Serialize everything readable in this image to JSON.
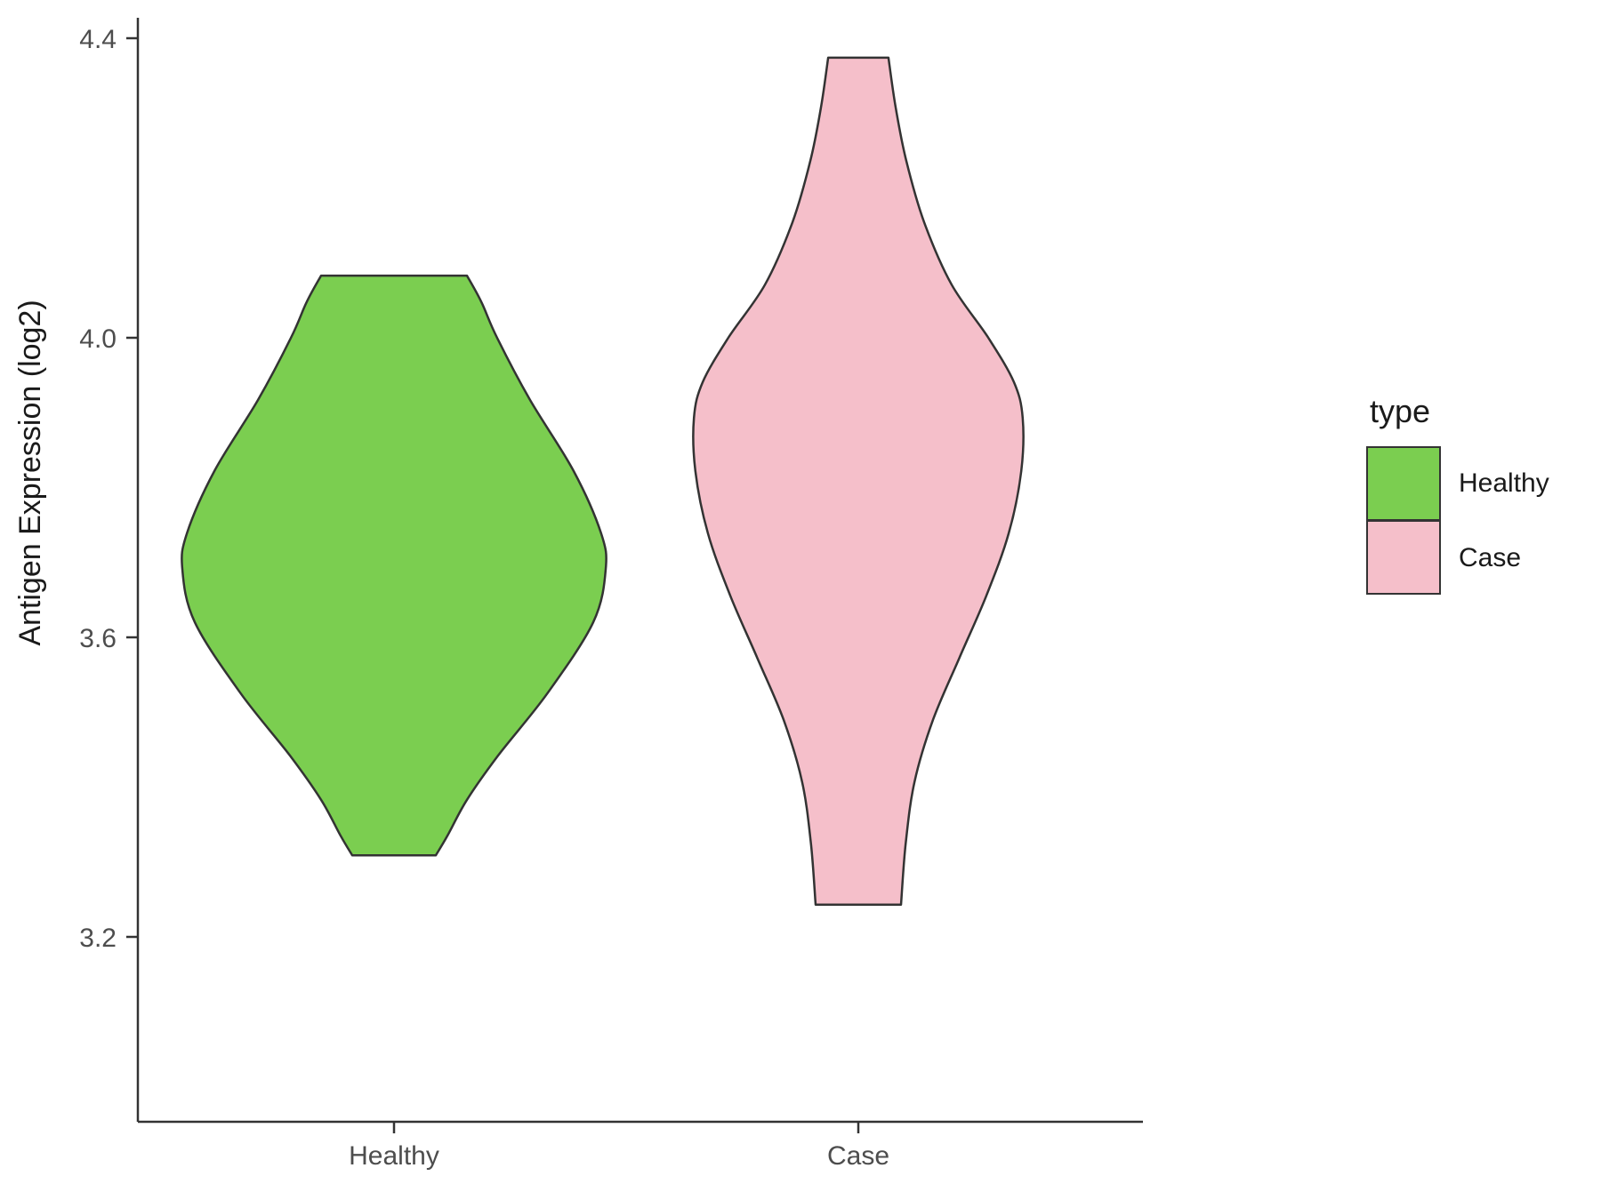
{
  "chart_data": {
    "type": "violin",
    "title": "",
    "xlabel": "",
    "ylabel": "Antigen Expression (log2)",
    "categories": [
      "Healthy",
      "Case"
    ],
    "ylim": [
      3.2,
      4.4
    ],
    "ytick_values": [
      3.2,
      3.6,
      4.0,
      4.4
    ],
    "ytick_labels": [
      "3.2",
      "3.6",
      "4.0",
      "4.4"
    ],
    "grid": false,
    "legend": {
      "title": "type",
      "position": "right",
      "entries": [
        {
          "label": "Healthy",
          "color": "#7BCE50"
        },
        {
          "label": "Case",
          "color": "#F5BFCA"
        }
      ]
    },
    "series": [
      {
        "name": "Healthy",
        "fill": "#7BCE50",
        "outline": "#333333",
        "value_range": [
          3.309,
          4.083
        ],
        "profile": [
          {
            "v": 4.083,
            "hw": 0.157
          },
          {
            "v": 4.048,
            "hw": 0.188
          },
          {
            "v": 4.0,
            "hw": 0.222
          },
          {
            "v": 3.917,
            "hw": 0.293
          },
          {
            "v": 3.822,
            "hw": 0.387
          },
          {
            "v": 3.739,
            "hw": 0.446
          },
          {
            "v": 3.691,
            "hw": 0.456
          },
          {
            "v": 3.62,
            "hw": 0.429
          },
          {
            "v": 3.525,
            "hw": 0.33
          },
          {
            "v": 3.442,
            "hw": 0.224
          },
          {
            "v": 3.383,
            "hw": 0.157
          },
          {
            "v": 3.335,
            "hw": 0.115
          },
          {
            "v": 3.309,
            "hw": 0.09
          }
        ]
      },
      {
        "name": "Case",
        "fill": "#F5BFCA",
        "outline": "#333333",
        "value_range": [
          3.243,
          4.374
        ],
        "profile": [
          {
            "v": 4.374,
            "hw": 0.065
          },
          {
            "v": 4.309,
            "hw": 0.08
          },
          {
            "v": 4.237,
            "hw": 0.103
          },
          {
            "v": 4.154,
            "hw": 0.142
          },
          {
            "v": 4.071,
            "hw": 0.201
          },
          {
            "v": 4.0,
            "hw": 0.28
          },
          {
            "v": 3.941,
            "hw": 0.335
          },
          {
            "v": 3.893,
            "hw": 0.354
          },
          {
            "v": 3.822,
            "hw": 0.351
          },
          {
            "v": 3.739,
            "hw": 0.324
          },
          {
            "v": 3.656,
            "hw": 0.276
          },
          {
            "v": 3.573,
            "hw": 0.218
          },
          {
            "v": 3.49,
            "hw": 0.161
          },
          {
            "v": 3.407,
            "hw": 0.121
          },
          {
            "v": 3.324,
            "hw": 0.102
          },
          {
            "v": 3.243,
            "hw": 0.092
          }
        ]
      }
    ]
  },
  "colors": {
    "background": "#FFFFFF",
    "axis": "#333333",
    "tick_text": "#4D4D4D",
    "title_text": "#1a1a1a"
  }
}
